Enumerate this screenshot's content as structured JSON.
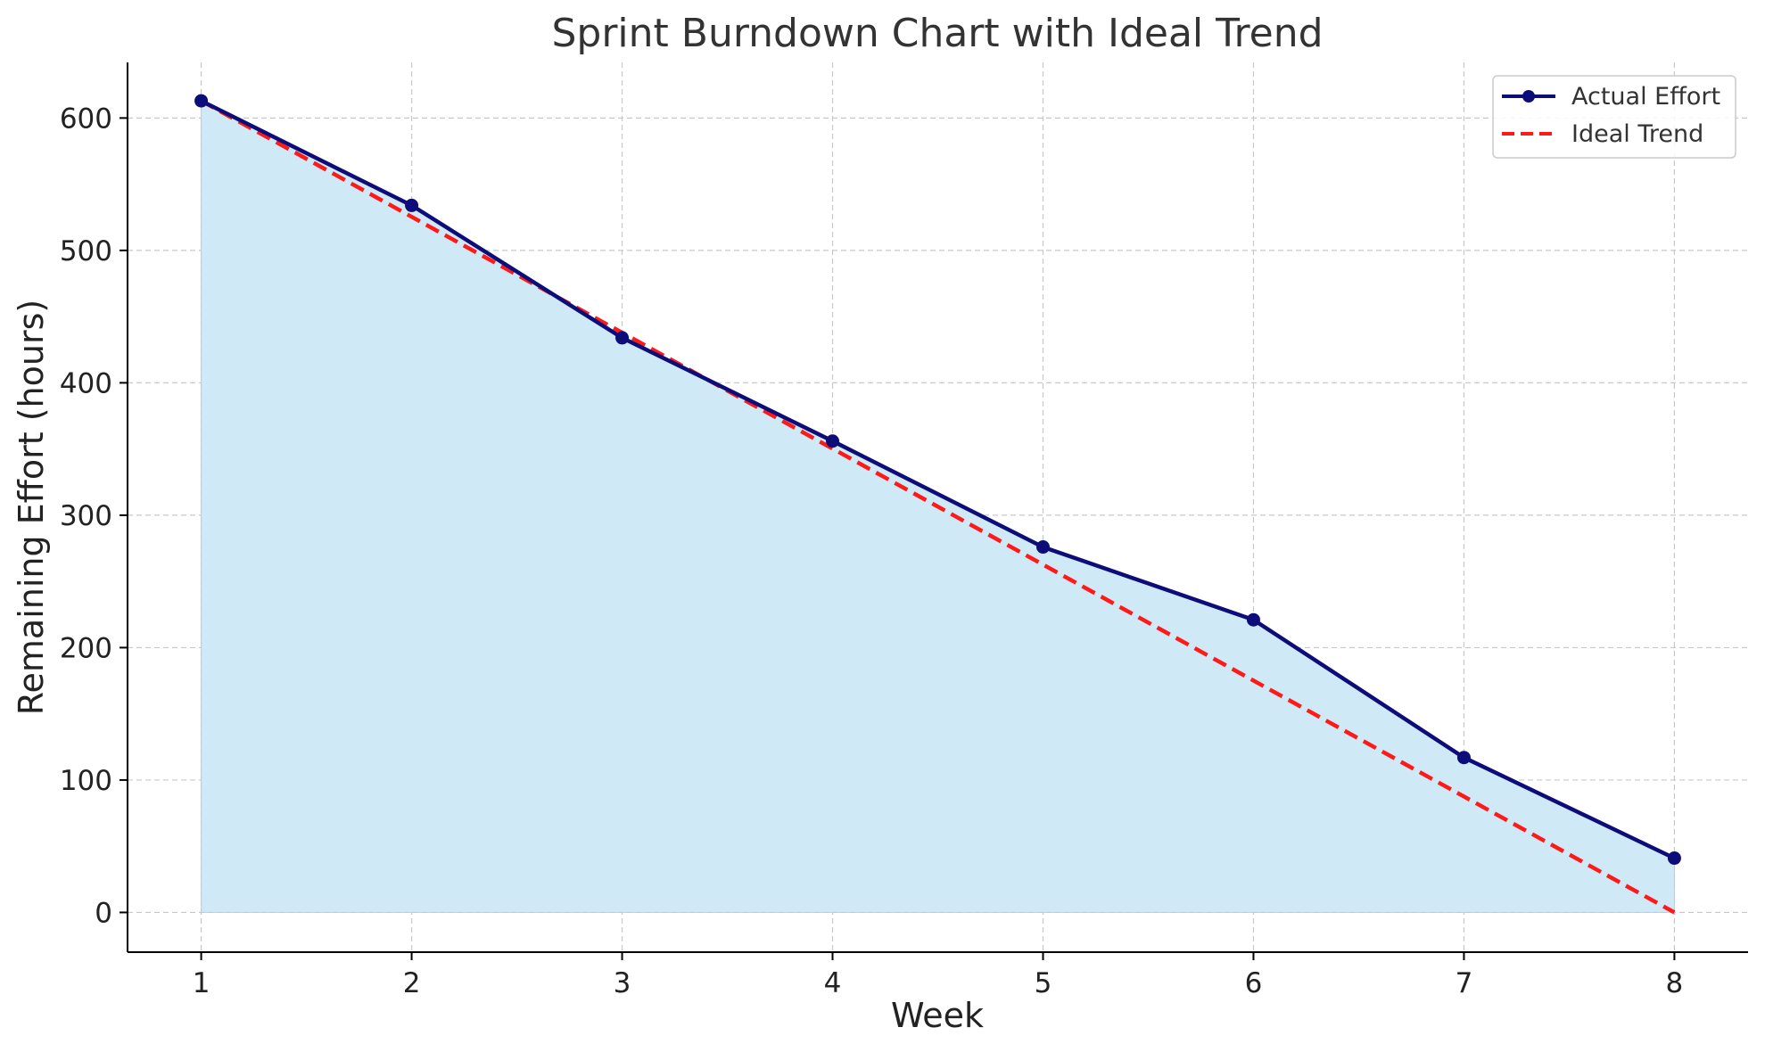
{
  "chart_data": {
    "type": "line",
    "title": "Sprint Burndown Chart with Ideal Trend",
    "xlabel": "Week",
    "ylabel": "Remaining Effort (hours)",
    "x": [
      1,
      2,
      3,
      4,
      5,
      6,
      7,
      8
    ],
    "xlim": [
      0.65,
      8.35
    ],
    "ylim": [
      -30,
      642
    ],
    "xticks": [
      1,
      2,
      3,
      4,
      5,
      6,
      7,
      8
    ],
    "yticks": [
      0,
      100,
      200,
      300,
      400,
      500,
      600
    ],
    "grid": true,
    "legend_position": "top-right",
    "series": [
      {
        "name": "Actual Effort",
        "style": "solid line with circle markers, area filled to zero",
        "color": "#0d0d7a",
        "fill_color": "#cfe9f6",
        "values": [
          613,
          534,
          434,
          356,
          276,
          221,
          117,
          41
        ]
      },
      {
        "name": "Ideal Trend",
        "style": "dashed line",
        "color": "#ff1a1a",
        "values": [
          613,
          525.4,
          437.9,
          350.3,
          262.7,
          175.1,
          87.6,
          0
        ]
      }
    ]
  }
}
